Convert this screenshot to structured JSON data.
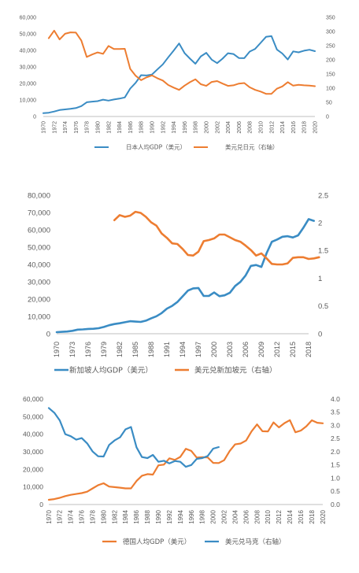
{
  "chart_data": [
    {
      "id": "japan",
      "type": "line",
      "x_ticks": [
        "1970",
        "1972",
        "1974",
        "1976",
        "1978",
        "1980",
        "1982",
        "1984",
        "1986",
        "1988",
        "1990",
        "1992",
        "1994",
        "1996",
        "1998",
        "2000",
        "2002",
        "2004",
        "2006",
        "2008",
        "2010",
        "2012",
        "2014",
        "2016",
        "2018",
        "2020"
      ],
      "y_left": {
        "min": 0,
        "max": 60000,
        "ticks": [
          "0",
          "10,000",
          "20,000",
          "30,000",
          "40,000",
          "50,000",
          "60,000"
        ]
      },
      "y_right": {
        "min": 0,
        "max": 350,
        "ticks": [
          "0",
          "50",
          "100",
          "150",
          "200",
          "250",
          "300",
          "350"
        ]
      },
      "series": [
        {
          "name": "日本人均GDP（美元）",
          "axis": "left",
          "color": "#3a8cc4",
          "x": [
            1970,
            1971,
            1972,
            1973,
            1974,
            1975,
            1976,
            1977,
            1978,
            1979,
            1980,
            1981,
            1982,
            1983,
            1984,
            1985,
            1986,
            1987,
            1988,
            1989,
            1990,
            1991,
            1992,
            1993,
            1994,
            1995,
            1996,
            1997,
            1998,
            1999,
            2000,
            2001,
            2002,
            2003,
            2004,
            2005,
            2006,
            2007,
            2008,
            2009,
            2010,
            2011,
            2012,
            2013,
            2014,
            2015,
            2016,
            2017,
            2018,
            2019,
            2020
          ],
          "y": [
            2000,
            2300,
            3000,
            3900,
            4300,
            4600,
            5100,
            6300,
            8600,
            9000,
            9300,
            10200,
            9600,
            10300,
            10800,
            11500,
            16900,
            20400,
            25000,
            24800,
            25400,
            28500,
            31500,
            35800,
            39900,
            44200,
            38400,
            35000,
            31900,
            36400,
            38500,
            34400,
            32300,
            35000,
            38300,
            37800,
            35400,
            35300,
            39300,
            40900,
            44500,
            48200,
            48600,
            40500,
            38100,
            34500,
            39400,
            38800,
            39800,
            40400,
            39500
          ]
        },
        {
          "name": "美元兑日元（右轴）",
          "axis": "right",
          "color": "#ed7d31",
          "x": [
            1971,
            1972,
            1973,
            1974,
            1975,
            1976,
            1977,
            1978,
            1979,
            1980,
            1981,
            1982,
            1983,
            1984,
            1985,
            1986,
            1987,
            1988,
            1989,
            1990,
            1991,
            1992,
            1993,
            1994,
            1995,
            1996,
            1997,
            1998,
            1999,
            2000,
            2001,
            2002,
            2003,
            2004,
            2005,
            2006,
            2007,
            2008,
            2009,
            2010,
            2011,
            2012,
            2013,
            2014,
            2015,
            2016,
            2017,
            2018,
            2019,
            2020
          ],
          "y": [
            276,
            303,
            272,
            292,
            297,
            296,
            268,
            210,
            219,
            226,
            221,
            249,
            238,
            238,
            239,
            168,
            144,
            128,
            138,
            145,
            135,
            127,
            111,
            102,
            94,
            109,
            121,
            131,
            114,
            108,
            122,
            125,
            116,
            108,
            110,
            116,
            118,
            103,
            94,
            88,
            80,
            80,
            98,
            106,
            121,
            109,
            112,
            110,
            109,
            107
          ]
        }
      ]
    },
    {
      "id": "singapore",
      "type": "line",
      "x_ticks": [
        "1970",
        "1973",
        "1976",
        "1979",
        "1982",
        "1985",
        "1988",
        "1991",
        "1994",
        "1997",
        "2000",
        "2003",
        "2006",
        "2009",
        "2012",
        "2015",
        "2018"
      ],
      "y_left": {
        "min": 0,
        "max": 80000,
        "ticks": [
          "0",
          "10,000",
          "20,000",
          "30,000",
          "40,000",
          "50,000",
          "60,000",
          "70,000",
          "80,000"
        ]
      },
      "y_right": {
        "min": 0,
        "max": 2.5,
        "ticks": [
          "0",
          "0.5",
          "1",
          "1.5",
          "2",
          "2.5"
        ]
      },
      "series": [
        {
          "name": "新加坡人均GDP（美元）",
          "axis": "left",
          "color": "#3a8cc4",
          "x": [
            1970,
            1971,
            1972,
            1973,
            1974,
            1975,
            1976,
            1977,
            1978,
            1979,
            1980,
            1981,
            1982,
            1983,
            1984,
            1985,
            1986,
            1987,
            1988,
            1989,
            1990,
            1991,
            1992,
            1993,
            1994,
            1995,
            1996,
            1997,
            1998,
            1999,
            2000,
            2001,
            2002,
            2003,
            2004,
            2005,
            2006,
            2007,
            2008,
            2009,
            2010,
            2011,
            2012,
            2013,
            2014,
            2015,
            2016,
            2017,
            2018,
            2019
          ],
          "y": [
            925,
            1070,
            1260,
            1690,
            2350,
            2490,
            2750,
            2850,
            3190,
            3900,
            4930,
            5600,
            6060,
            6630,
            7220,
            6990,
            6800,
            7540,
            8890,
            10100,
            11900,
            14500,
            16100,
            18300,
            21600,
            24900,
            26200,
            26400,
            21800,
            21800,
            23800,
            21700,
            22200,
            23700,
            27600,
            29900,
            33700,
            39200,
            39700,
            38600,
            46600,
            53100,
            54400,
            56000,
            56300,
            55600,
            56800,
            61200,
            66200,
            65200
          ]
        },
        {
          "name": "美元兑新加坡元（右轴）",
          "axis": "right",
          "color": "#ed7d31",
          "x": [
            1981,
            1982,
            1983,
            1984,
            1985,
            1986,
            1987,
            1988,
            1989,
            1990,
            1991,
            1992,
            1993,
            1994,
            1995,
            1996,
            1997,
            1998,
            1999,
            2000,
            2001,
            2002,
            2003,
            2004,
            2005,
            2006,
            2007,
            2008,
            2009,
            2010,
            2011,
            2012,
            2013,
            2014,
            2015,
            2016,
            2017,
            2018,
            2019,
            2020
          ],
          "y": [
            2.05,
            2.14,
            2.11,
            2.13,
            2.2,
            2.18,
            2.11,
            2.01,
            1.95,
            1.81,
            1.73,
            1.63,
            1.62,
            1.53,
            1.42,
            1.41,
            1.48,
            1.67,
            1.69,
            1.72,
            1.79,
            1.79,
            1.74,
            1.69,
            1.66,
            1.59,
            1.51,
            1.41,
            1.45,
            1.36,
            1.26,
            1.25,
            1.25,
            1.27,
            1.37,
            1.38,
            1.38,
            1.35,
            1.36,
            1.38
          ]
        }
      ]
    },
    {
      "id": "germany",
      "type": "line",
      "x_ticks": [
        "1970",
        "1972",
        "1974",
        "1976",
        "1978",
        "1980",
        "1982",
        "1984",
        "1986",
        "1988",
        "1990",
        "1992",
        "1994",
        "1996",
        "1998",
        "2000",
        "2002",
        "2004",
        "2006",
        "2008",
        "2010",
        "2012",
        "2014",
        "2016",
        "2018",
        "2020"
      ],
      "y_left": {
        "min": 0,
        "max": 60000,
        "ticks": [
          "0",
          "10,000",
          "20,000",
          "30,000",
          "40,000",
          "50,000",
          "60,000"
        ]
      },
      "y_right": {
        "min": 0,
        "max": 4.0,
        "ticks": [
          "0.0",
          "0.5",
          "1.0",
          "1.5",
          "2.0",
          "2.5",
          "3.0",
          "3.5",
          "4.0"
        ]
      },
      "series": [
        {
          "name": "德国人均GDP（美元）",
          "axis": "left",
          "color": "#ed7d31",
          "x": [
            1970,
            1971,
            1972,
            1973,
            1974,
            1975,
            1976,
            1977,
            1978,
            1979,
            1980,
            1981,
            1982,
            1983,
            1984,
            1985,
            1986,
            1987,
            1988,
            1989,
            1990,
            1991,
            1992,
            1993,
            1994,
            1995,
            1996,
            1997,
            1998,
            1999,
            2000,
            2001,
            2002,
            2003,
            2004,
            2005,
            2006,
            2007,
            2008,
            2009,
            2010,
            2011,
            2012,
            2013,
            2014,
            2015,
            2016,
            2017,
            2018,
            2019,
            2020
          ],
          "y": [
            2700,
            3100,
            3800,
            4800,
            5500,
            6000,
            6500,
            7300,
            9200,
            11000,
            12100,
            10200,
            9900,
            9600,
            9200,
            9200,
            13400,
            16400,
            17300,
            17000,
            22300,
            22700,
            26300,
            25400,
            27100,
            31700,
            30500,
            26700,
            26900,
            26800,
            23700,
            23600,
            25200,
            30400,
            34200,
            34700,
            36400,
            41600,
            45600,
            41700,
            41600,
            46700,
            43900,
            46300,
            48000,
            41100,
            42100,
            44500,
            47900,
            46500,
            46200
          ]
        },
        {
          "name": "美元兑马克（右轴）",
          "axis": "right",
          "color": "#3a8cc4",
          "x": [
            1970,
            1971,
            1972,
            1973,
            1974,
            1975,
            1976,
            1977,
            1978,
            1979,
            1980,
            1981,
            1982,
            1983,
            1984,
            1985,
            1986,
            1987,
            1988,
            1989,
            1990,
            1991,
            1992,
            1993,
            1994,
            1995,
            1996,
            1997,
            1998,
            1999,
            2000,
            2001
          ],
          "y": [
            3.66,
            3.48,
            3.19,
            2.67,
            2.59,
            2.46,
            2.52,
            2.32,
            2.01,
            1.83,
            1.82,
            2.26,
            2.43,
            2.55,
            2.85,
            2.94,
            2.17,
            1.8,
            1.76,
            1.88,
            1.62,
            1.66,
            1.56,
            1.65,
            1.62,
            1.43,
            1.5,
            1.73,
            1.76,
            1.84,
            2.12,
            2.18
          ]
        }
      ]
    }
  ]
}
